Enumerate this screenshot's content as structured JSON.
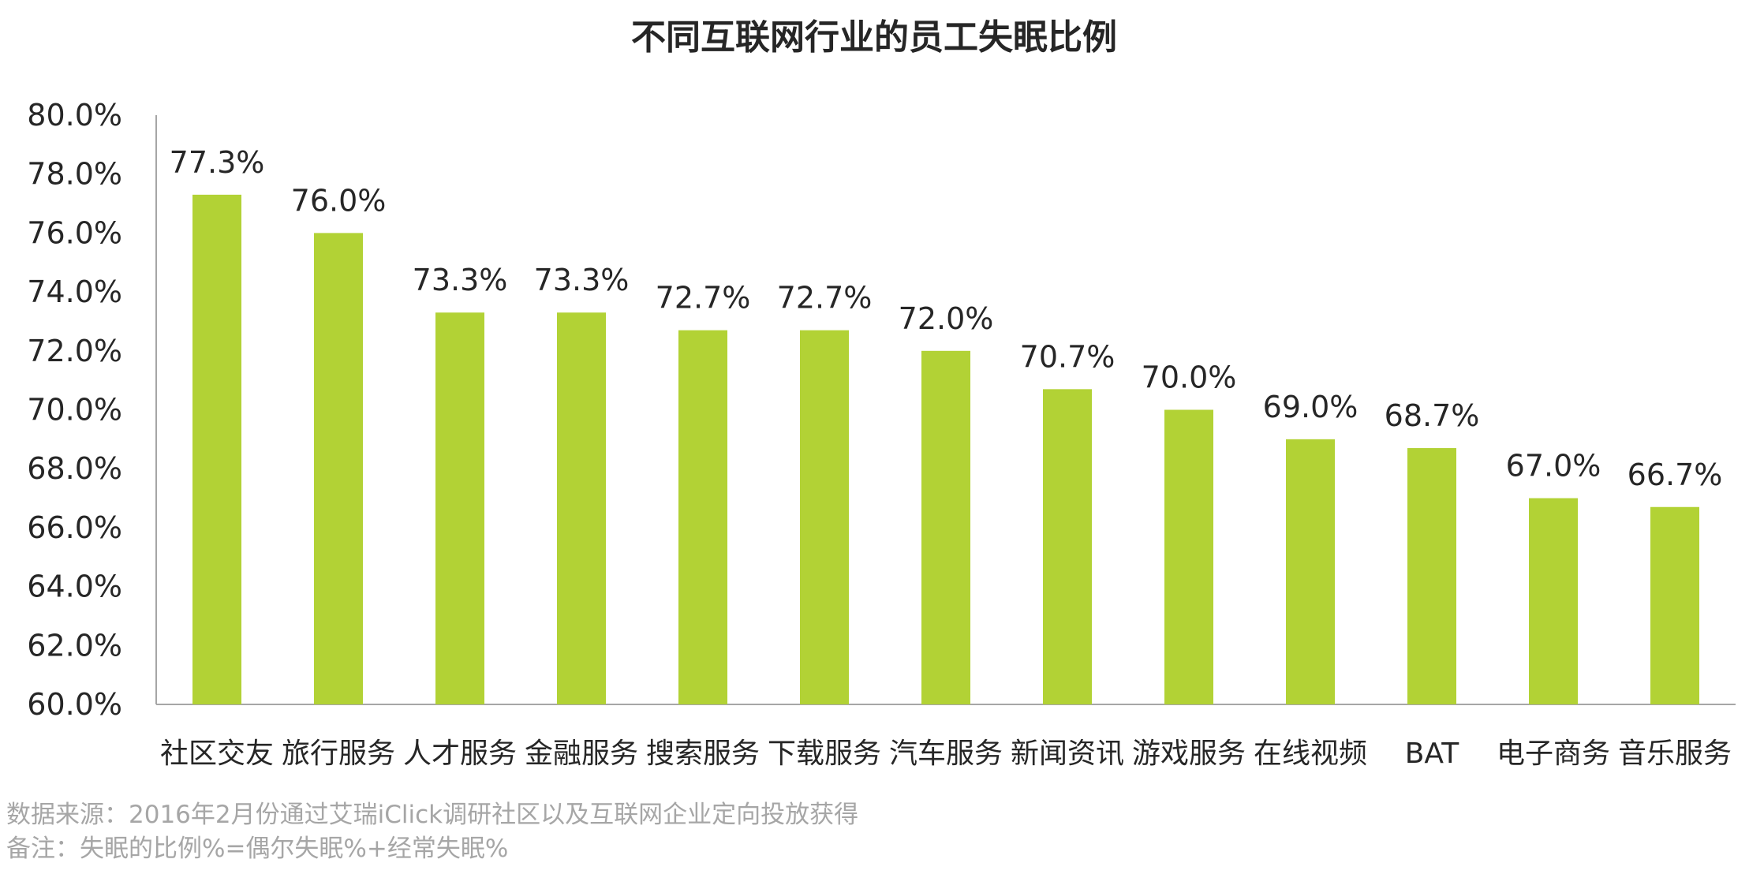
{
  "chart_data": {
    "type": "bar",
    "title": "不同互联网行业的员工失眠比例",
    "categories": [
      "社区交友",
      "旅行服务",
      "人才服务",
      "金融服务",
      "搜索服务",
      "下载服务",
      "汽车服务",
      "新闻资讯",
      "游戏服务",
      "在线视频",
      "BAT",
      "电子商务",
      "音乐服务"
    ],
    "values": [
      77.3,
      76.0,
      73.3,
      73.3,
      72.7,
      72.7,
      72.0,
      70.7,
      70.0,
      69.0,
      68.7,
      67.0,
      66.7
    ],
    "data_labels": [
      "77.3%",
      "76.0%",
      "73.3%",
      "73.3%",
      "72.7%",
      "72.7%",
      "72.0%",
      "70.7%",
      "70.0%",
      "69.0%",
      "68.7%",
      "67.0%",
      "66.7%"
    ],
    "ylim": [
      60,
      80
    ],
    "yticks": [
      60,
      62,
      64,
      66,
      68,
      70,
      72,
      74,
      76,
      78,
      80
    ],
    "ytick_labels": [
      "60.0%",
      "62.0%",
      "64.0%",
      "66.0%",
      "68.0%",
      "70.0%",
      "72.0%",
      "74.0%",
      "76.0%",
      "78.0%",
      "80.0%"
    ],
    "xlabel": "",
    "ylabel": "",
    "grid": false,
    "bar_color": "#b2d235"
  },
  "notes": {
    "source": "数据来源：2016年2月份通过艾瑞iClick调研社区以及互联网企业定向投放获得",
    "remark": "备注：失眠的比例%=偶尔失眠%+经常失眠%"
  },
  "colors": {
    "bar": "#b2d235",
    "axis": "#a6a6a6",
    "text": "#262626",
    "note": "#a6a6a6"
  }
}
